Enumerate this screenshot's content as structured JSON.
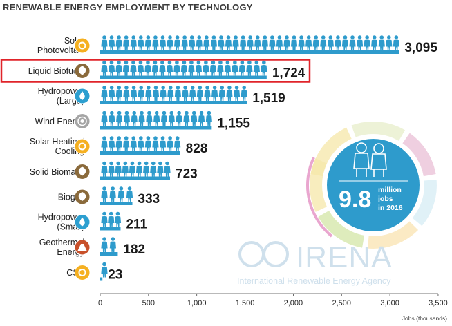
{
  "chart_data": {
    "type": "bar",
    "orientation": "horizontal",
    "title": "RENEWABLE ENERGY EMPLOYMENT BY TECHNOLOGY",
    "xlabel": "Jobs (thousands)",
    "xlim": [
      0,
      3500
    ],
    "xticks": [
      "0",
      "500",
      "1,000",
      "1,500",
      "2,000",
      "2,500",
      "3,000",
      "3,500"
    ],
    "xtick_values": [
      0,
      500,
      1000,
      1500,
      2000,
      2500,
      3000,
      3500
    ],
    "grid": false,
    "categories": [
      {
        "label_lines": [
          "Solar",
          "Photovoltaic"
        ],
        "value": 3095,
        "value_label": "3,095",
        "icon": "sun-icon",
        "icon_color": "#f5b021",
        "highlighted": false
      },
      {
        "label_lines": [
          "Liquid Biofuels"
        ],
        "value": 1724,
        "value_label": "1,724",
        "icon": "leaf-icon",
        "icon_color": "#8a6a3b",
        "highlighted": true
      },
      {
        "label_lines": [
          "Hydropower",
          "(Large)"
        ],
        "value": 1519,
        "value_label": "1,519",
        "icon": "water-drop-icon",
        "icon_color": "#2c9fd0",
        "highlighted": false
      },
      {
        "label_lines": [
          "Wind Energy"
        ],
        "value": 1155,
        "value_label": "1,155",
        "icon": "wind-icon",
        "icon_color": "#a5a5a5",
        "highlighted": false
      },
      {
        "label_lines": [
          "Solar Heating/",
          "Cooling"
        ],
        "value": 828,
        "value_label": "828",
        "icon": "sun-icon",
        "icon_color": "#f5b021",
        "highlighted": false
      },
      {
        "label_lines": [
          "Solid Biomass"
        ],
        "value": 723,
        "value_label": "723",
        "icon": "leaf-icon",
        "icon_color": "#8a6a3b",
        "highlighted": false
      },
      {
        "label_lines": [
          "Biogas"
        ],
        "value": 333,
        "value_label": "333",
        "icon": "leaf-icon",
        "icon_color": "#8a6a3b",
        "highlighted": false
      },
      {
        "label_lines": [
          "Hydropower",
          "(Small)"
        ],
        "value": 211,
        "value_label": "211",
        "icon": "water-drop-icon",
        "icon_color": "#2c9fd0",
        "highlighted": false
      },
      {
        "label_lines": [
          "Geothermal",
          "Energy"
        ],
        "value": 182,
        "value_label": "182",
        "icon": "volcano-icon",
        "icon_color": "#c8502a",
        "highlighted": false
      },
      {
        "label_lines": [
          "CSP"
        ],
        "value": 23,
        "value_label": "23",
        "icon": "sun-icon",
        "icon_color": "#f5b021",
        "highlighted": false
      }
    ],
    "person_unit": 75
  },
  "badge": {
    "big_number": "9.8",
    "line1": "million",
    "line2": "jobs",
    "line3": "in 2016"
  },
  "watermark": {
    "main": "IRENA",
    "sub": "International Renewable Energy Agency"
  },
  "colors": {
    "bar": "#2e9bcc",
    "highlight_box": "#e0242a",
    "badge": "#2e9bcc",
    "watermark": "#cfe0ec",
    "ring": [
      "#f6e7a8",
      "#e7eec9",
      "#e9bfd6",
      "#d6ecf4",
      "#f9e3b0",
      "#d3e5a6"
    ]
  }
}
